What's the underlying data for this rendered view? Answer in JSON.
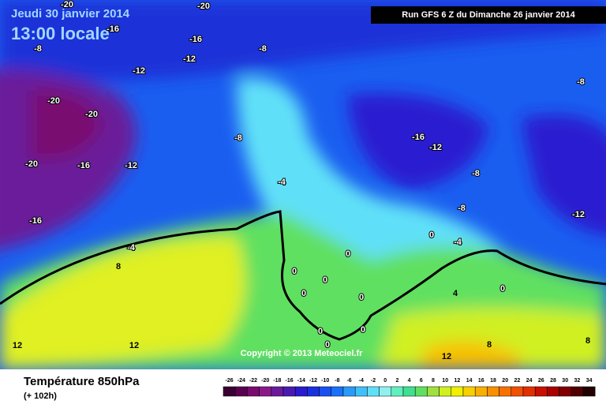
{
  "header": {
    "date": "Jeudi 30 janvier 2014",
    "time": "13:00 locale",
    "run": "Run GFS 6 Z du Dimanche 26 janvier 2014"
  },
  "map": {
    "contour_labels": [
      -20,
      -20,
      -16,
      -16,
      -12,
      -8,
      -8,
      -12,
      -8,
      -20,
      -20,
      -20,
      -16,
      -12,
      -8,
      -16,
      -12,
      -4,
      -8,
      -8,
      -12,
      -16,
      -4,
      8,
      0,
      -4,
      0,
      0,
      0,
      0,
      0,
      4,
      0,
      0,
      0,
      0,
      12,
      12,
      12,
      8,
      8
    ]
  },
  "footer": {
    "copyright": "Copyright © 2013 Meteociel.fr",
    "title": "Température 850hPa",
    "lead": "(+ 102h)"
  },
  "legend": {
    "ticks": [
      -26,
      -24,
      -22,
      -20,
      -18,
      -16,
      -14,
      -12,
      -10,
      -8,
      -6,
      -4,
      -2,
      0,
      2,
      4,
      6,
      8,
      10,
      12,
      14,
      16,
      18,
      20,
      22,
      24,
      26,
      28,
      30,
      32,
      34
    ],
    "colors": [
      "#3a0030",
      "#5a0050",
      "#7a0a70",
      "#8a1a8a",
      "#6a1a9a",
      "#4a1ab0",
      "#2a1ad0",
      "#1a30e0",
      "#1a50f0",
      "#1a70f8",
      "#2a9af8",
      "#40c0f8",
      "#60e0f8",
      "#90f0f0",
      "#60f0c0",
      "#40e090",
      "#60e060",
      "#a0e040",
      "#d0f020",
      "#f0f000",
      "#f8d000",
      "#f8b000",
      "#f89000",
      "#f87000",
      "#f05000",
      "#e03000",
      "#c81000",
      "#a80000",
      "#800000",
      "#500000",
      "#200000"
    ]
  }
}
